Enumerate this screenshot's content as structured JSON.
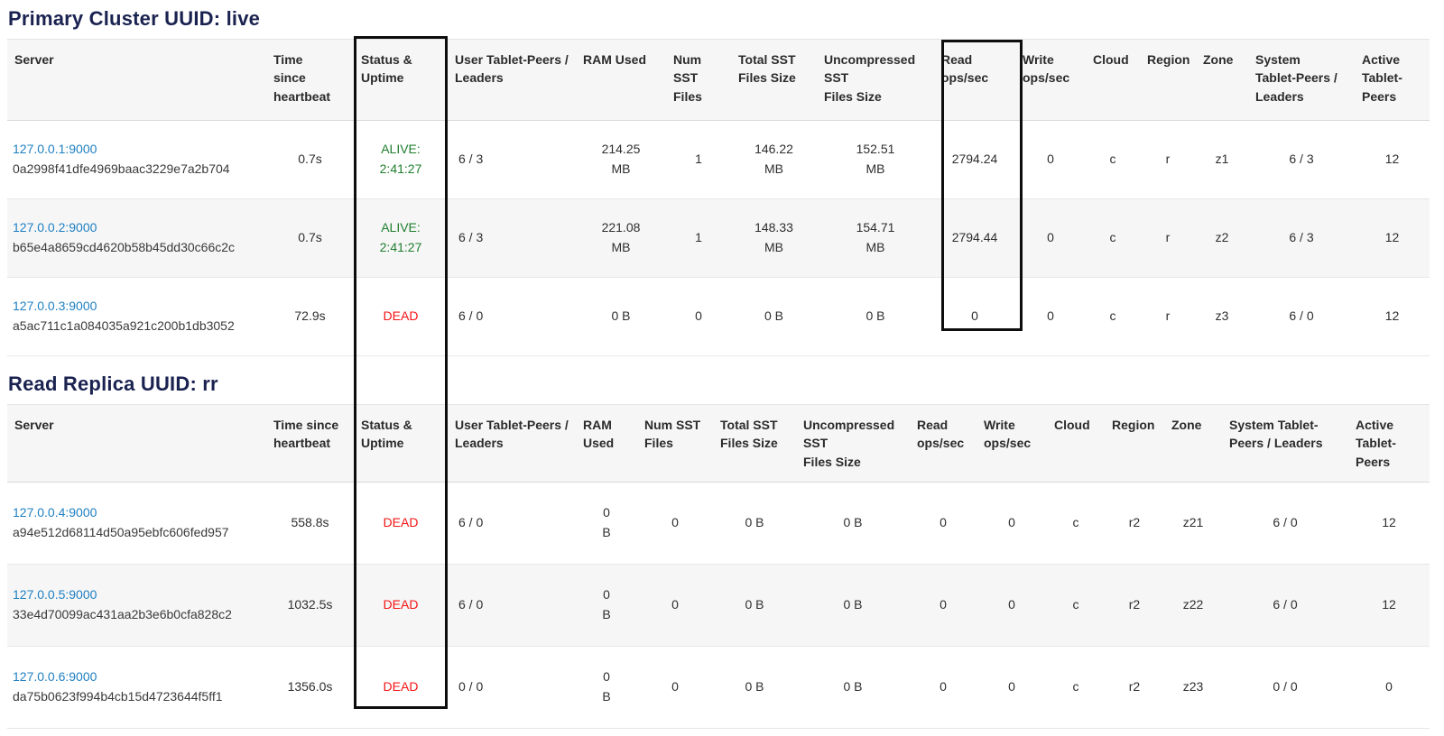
{
  "colors": {
    "title_navy": "#1a2250",
    "link_blue": "#1e7fc2",
    "alive_green": "#1e7e2e",
    "dead_red": "#f51414",
    "annotation_box": "#0d0d0d",
    "stripe_gray": "#f6f6f6"
  },
  "annotations": [
    {
      "name": "status-uptime-column-highlight"
    },
    {
      "name": "read-ops-column-highlight"
    }
  ],
  "sections": [
    {
      "title": "Primary Cluster UUID: live",
      "columns": [
        "Server",
        "Time\nsince\nheartbeat",
        "Status &\nUptime",
        "User Tablet-Peers /\nLeaders",
        "RAM Used",
        "Num SST\nFiles",
        "Total SST\nFiles Size",
        "Uncompressed\nSST\nFiles Size",
        "Read\nops/sec",
        "Write\nops/sec",
        "Cloud",
        "Region",
        "Zone",
        "System\nTablet-Peers /\nLeaders",
        "Active\nTablet-\nPeers"
      ],
      "rows": [
        {
          "server_link": "127.0.0.1:9000",
          "server_uuid": "0a2998f41dfe4969baac3229e7a2b704",
          "heartbeat": "0.7s",
          "status": "ALIVE:\n2:41:27",
          "status_state": "alive",
          "values": [
            "6 / 3",
            "214.25\nMB",
            "1",
            "146.22\nMB",
            "152.51\nMB",
            "2794.24",
            "0",
            "c",
            "r",
            "z1",
            "6 / 3",
            "12"
          ]
        },
        {
          "server_link": "127.0.0.2:9000",
          "server_uuid": "b65e4a8659cd4620b58b45dd30c66c2c",
          "heartbeat": "0.7s",
          "status": "ALIVE:\n2:41:27",
          "status_state": "alive",
          "values": [
            "6 / 3",
            "221.08\nMB",
            "1",
            "148.33\nMB",
            "154.71\nMB",
            "2794.44",
            "0",
            "c",
            "r",
            "z2",
            "6 / 3",
            "12"
          ]
        },
        {
          "server_link": "127.0.0.3:9000",
          "server_uuid": "a5ac711c1a084035a921c200b1db3052",
          "heartbeat": "72.9s",
          "status": "DEAD",
          "status_state": "dead",
          "values": [
            "6 / 0",
            "0 B",
            "0",
            "0 B",
            "0 B",
            "0",
            "0",
            "c",
            "r",
            "z3",
            "6 / 0",
            "12"
          ]
        }
      ]
    },
    {
      "title": "Read Replica UUID: rr",
      "columns": [
        "Server",
        "Time since\nheartbeat",
        "Status &\nUptime",
        "User Tablet-Peers /\nLeaders",
        "RAM\nUsed",
        "Num SST\nFiles",
        "Total SST\nFiles Size",
        "Uncompressed\nSST\nFiles Size",
        "Read\nops/sec",
        "Write\nops/sec",
        "Cloud",
        "Region",
        "Zone",
        "System Tablet-\nPeers / Leaders",
        "Active\nTablet-\nPeers"
      ],
      "rows": [
        {
          "server_link": "127.0.0.4:9000",
          "server_uuid": "a94e512d68114d50a95ebfc606fed957",
          "heartbeat": "558.8s",
          "status": "DEAD",
          "status_state": "dead",
          "values": [
            "6 / 0",
            "0\nB",
            "0",
            "0 B",
            "0 B",
            "0",
            "0",
            "c",
            "r2",
            "z21",
            "6 / 0",
            "12"
          ]
        },
        {
          "server_link": "127.0.0.5:9000",
          "server_uuid": "33e4d70099ac431aa2b3e6b0cfa828c2",
          "heartbeat": "1032.5s",
          "status": "DEAD",
          "status_state": "dead",
          "values": [
            "6 / 0",
            "0\nB",
            "0",
            "0 B",
            "0 B",
            "0",
            "0",
            "c",
            "r2",
            "z22",
            "6 / 0",
            "12"
          ]
        },
        {
          "server_link": "127.0.0.6:9000",
          "server_uuid": "da75b0623f994b4cb15d4723644f5ff1",
          "heartbeat": "1356.0s",
          "status": "DEAD",
          "status_state": "dead",
          "values": [
            "0 / 0",
            "0\nB",
            "0",
            "0 B",
            "0 B",
            "0",
            "0",
            "c",
            "r2",
            "z23",
            "0 / 0",
            "0"
          ]
        }
      ]
    }
  ]
}
